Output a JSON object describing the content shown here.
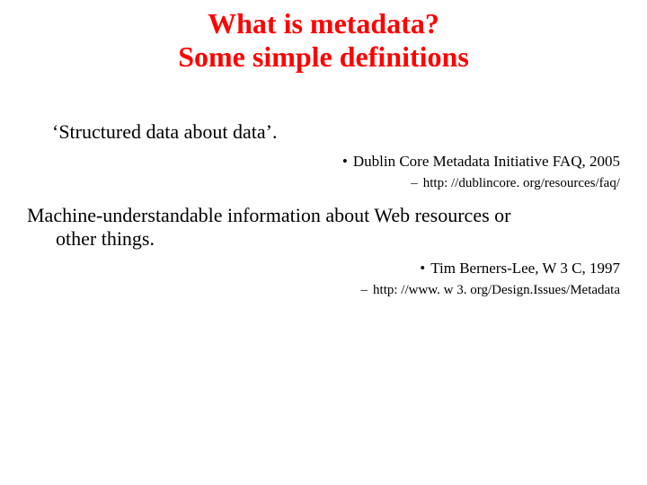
{
  "title": {
    "line1": "What is metadata?",
    "line2": "Some simple definitions",
    "color": "#ff0000",
    "fontsize": 32,
    "fontweight": "bold"
  },
  "body_fontsize": 22,
  "citation_main_fontsize": 17,
  "citation_sub_fontsize": 15,
  "background_color": "#ffffff",
  "text_color": "#000000",
  "definitions": [
    {
      "text": "‘Structured data about data’.",
      "citation": {
        "source": "Dublin Core Metadata Initiative FAQ, 2005",
        "url": "http: //dublincore. org/resources/faq/"
      }
    },
    {
      "text_line1": "Machine-understandable information about Web resources or",
      "text_line2": "other things.",
      "citation": {
        "source": "Tim Berners-Lee, W 3 C, 1997",
        "url": "http: //www. w 3. org/Design.Issues/Metadata"
      }
    }
  ],
  "bullet_char": "•",
  "dash_char": "–"
}
